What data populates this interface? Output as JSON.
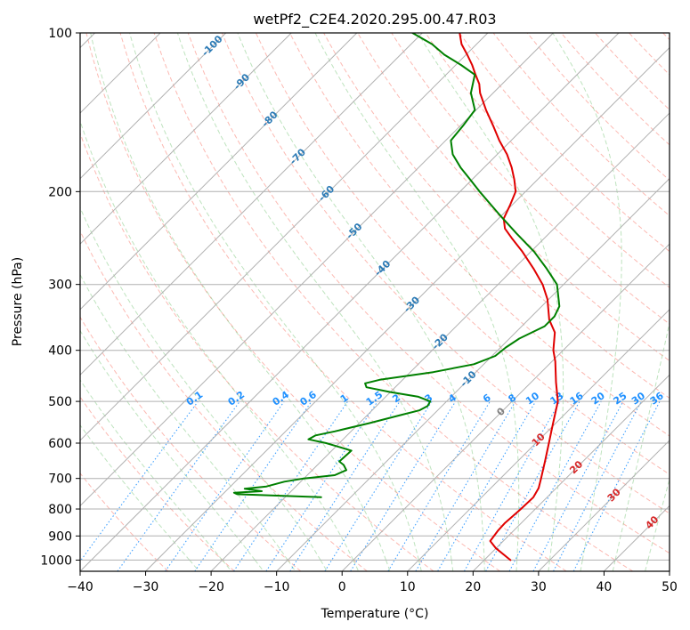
{
  "chart_data": {
    "type": "line",
    "subtype": "skew-T log-P sounding",
    "title": "wetPf2_C2E4.2020.295.00.47.R03",
    "xlabel": "Temperature (°C)",
    "ylabel": "Pressure (hPa)",
    "xlim": [
      -40,
      50
    ],
    "ylim": [
      1050,
      100
    ],
    "y_scale": "log",
    "grid": true,
    "x_ticks": [
      "−40",
      "−30",
      "−20",
      "−10",
      "0",
      "10",
      "20",
      "30",
      "40",
      "50"
    ],
    "y_ticks": [
      "100",
      "200",
      "300",
      "400",
      "500",
      "600",
      "700",
      "800",
      "900",
      "1000"
    ],
    "colors": {
      "temperature": "#e00000",
      "dewpoint": "#008000",
      "dry_adiabat": "#fa8072",
      "moist_adiabat": "#5cb85c",
      "mixing_ratio": "#1e90ff",
      "grid": "#b0b0b0"
    },
    "isotherm_labels_cold": [
      "-100",
      "-90",
      "-80",
      "-70",
      "-60",
      "-50",
      "-40",
      "-30",
      "-20",
      "-10"
    ],
    "isotherm_labels_warm": [
      "0",
      "10",
      "20",
      "30",
      "40"
    ],
    "mixing_ratio_labels": [
      "0.1",
      "0.2",
      "0.4",
      "0.6",
      "1",
      "1.5",
      "2",
      "3",
      "4",
      "6",
      "8",
      "10",
      "13",
      "16",
      "20",
      "25",
      "30",
      "36"
    ],
    "series": [
      {
        "name": "Temperature",
        "points": [
          [
            1000,
            24
          ],
          [
            950,
            20
          ],
          [
            920,
            18
          ],
          [
            880,
            17.6
          ],
          [
            850,
            17.5
          ],
          [
            800,
            17.8
          ],
          [
            760,
            17.9
          ],
          [
            730,
            17.3
          ],
          [
            700,
            16.2
          ],
          [
            650,
            14.2
          ],
          [
            600,
            12
          ],
          [
            550,
            9.6
          ],
          [
            500,
            7
          ],
          [
            460,
            3.8
          ],
          [
            420,
            0.5
          ],
          [
            400,
            -1.5
          ],
          [
            370,
            -4
          ],
          [
            350,
            -6.8
          ],
          [
            320,
            -10.2
          ],
          [
            300,
            -13.2
          ],
          [
            280,
            -17
          ],
          [
            260,
            -21.3
          ],
          [
            245,
            -25
          ],
          [
            235,
            -27.5
          ],
          [
            225,
            -29.2
          ],
          [
            212,
            -30.3
          ],
          [
            200,
            -31.5
          ],
          [
            190,
            -33.5
          ],
          [
            180,
            -35.8
          ],
          [
            170,
            -38.5
          ],
          [
            160,
            -41.8
          ],
          [
            150,
            -45
          ],
          [
            140,
            -48.5
          ],
          [
            130,
            -52
          ],
          [
            125,
            -53.5
          ],
          [
            120,
            -55.5
          ],
          [
            115,
            -57.5
          ],
          [
            110,
            -59.8
          ],
          [
            105,
            -62.3
          ],
          [
            100,
            -64.3
          ]
        ]
      },
      {
        "name": "Dewpoint",
        "points": [
          [
            760,
            -14.5
          ],
          [
            755,
            -21
          ],
          [
            750,
            -27.8
          ],
          [
            745,
            -28.5
          ],
          [
            740,
            -24.5
          ],
          [
            732,
            -27.5
          ],
          [
            725,
            -24.5
          ],
          [
            710,
            -22.5
          ],
          [
            700,
            -20
          ],
          [
            690,
            -15.8
          ],
          [
            675,
            -14.8
          ],
          [
            660,
            -16
          ],
          [
            650,
            -17.2
          ],
          [
            620,
            -17
          ],
          [
            600,
            -22
          ],
          [
            590,
            -25.3
          ],
          [
            580,
            -24.8
          ],
          [
            570,
            -22.5
          ],
          [
            550,
            -18.5
          ],
          [
            530,
            -14.8
          ],
          [
            520,
            -12.8
          ],
          [
            510,
            -12.2
          ],
          [
            500,
            -12.5
          ],
          [
            490,
            -15
          ],
          [
            480,
            -20
          ],
          [
            470,
            -24.4
          ],
          [
            462,
            -25.2
          ],
          [
            455,
            -23.5
          ],
          [
            440,
            -16.5
          ],
          [
            425,
            -11.5
          ],
          [
            410,
            -9.5
          ],
          [
            395,
            -9.2
          ],
          [
            380,
            -8.5
          ],
          [
            360,
            -6.5
          ],
          [
            345,
            -6.5
          ],
          [
            330,
            -7.3
          ],
          [
            300,
            -11
          ],
          [
            280,
            -15
          ],
          [
            260,
            -19.5
          ],
          [
            240,
            -25
          ],
          [
            220,
            -30.8
          ],
          [
            200,
            -37
          ],
          [
            190,
            -40.2
          ],
          [
            180,
            -43.6
          ],
          [
            170,
            -46.8
          ],
          [
            160,
            -49.2
          ],
          [
            150,
            -49.6
          ],
          [
            140,
            -50.2
          ],
          [
            130,
            -53.4
          ],
          [
            120,
            -55.6
          ],
          [
            115,
            -59.2
          ],
          [
            110,
            -63.3
          ],
          [
            105,
            -66.8
          ],
          [
            100,
            -71.5
          ]
        ]
      }
    ]
  }
}
